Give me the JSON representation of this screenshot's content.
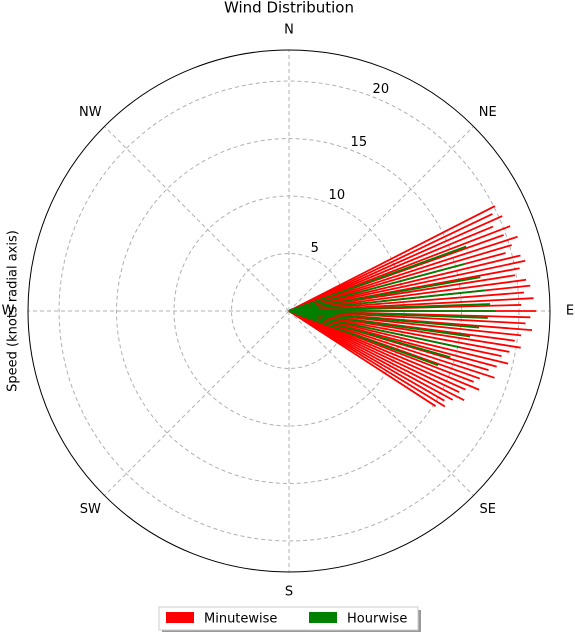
{
  "chart_data": {
    "type": "polar-lines",
    "title": "Wind Distribution",
    "ylabel": "Speed (knots radial axis)",
    "ylim": [
      0,
      22.7
    ],
    "yticks": [
      5,
      10,
      15,
      20
    ],
    "grid": true,
    "xticks": [
      {
        "value": 0,
        "label": "N"
      },
      {
        "value": 45,
        "label": "NE"
      },
      {
        "value": 90,
        "label": "E"
      },
      {
        "value": 135,
        "label": "SE"
      },
      {
        "value": 180,
        "label": "S"
      },
      {
        "value": 225,
        "label": "SW"
      },
      {
        "value": 270,
        "label": "W"
      },
      {
        "value": 315,
        "label": "NW"
      }
    ],
    "legend": "lower center",
    "series": [
      {
        "name": "Minutewise",
        "color": "#ff0000",
        "theta": [
          63,
          64.5,
          66,
          67.5,
          69,
          70.5,
          72,
          73.5,
          75,
          76.5,
          78,
          79.5,
          81,
          82.5,
          84,
          85.5,
          87,
          88.5,
          90,
          91.5,
          93,
          94.5,
          96,
          97.5,
          99,
          100.5,
          102,
          103.5,
          105,
          106.5,
          108,
          109.5,
          111,
          112.5,
          114,
          115.5,
          117,
          118.5,
          120,
          121.5,
          123
        ],
        "values": [
          20.1,
          19.6,
          20.3,
          19.2,
          20.6,
          19.8,
          20.9,
          20.2,
          19.5,
          20.7,
          21.0,
          20.4,
          19.9,
          20.8,
          21.1,
          20.5,
          21.3,
          20.2,
          21.5,
          21.0,
          20.6,
          21.2,
          20.3,
          19.8,
          20.4,
          19.5,
          18.9,
          19.6,
          18.7,
          18.1,
          18.8,
          17.6,
          17.2,
          17.9,
          16.8,
          16.4,
          17.1,
          16.2,
          15.6,
          15.9,
          15.2
        ]
      },
      {
        "name": "Hourwise",
        "color": "#008000",
        "theta": [
          70,
          75,
          80,
          84,
          88,
          90,
          92,
          95,
          98,
          102,
          106,
          110
        ],
        "values": [
          16.4,
          15.8,
          16.9,
          17.2,
          17.5,
          18.0,
          17.3,
          16.6,
          15.9,
          15.2,
          14.6,
          13.8
        ]
      }
    ]
  }
}
